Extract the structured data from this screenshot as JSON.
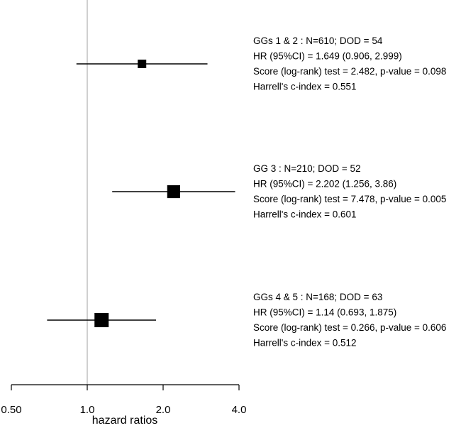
{
  "chart_data": {
    "type": "forest",
    "xlabel": "hazard ratios",
    "x_scale": "log",
    "xlim": [
      0.5,
      4.0
    ],
    "x_ticks": [
      {
        "value": 0.5,
        "label": "0.50"
      },
      {
        "value": 1.0,
        "label": "1.0"
      },
      {
        "value": 2.0,
        "label": "2.0"
      },
      {
        "value": 4.0,
        "label": "4.0"
      }
    ],
    "reference_line": 1.0,
    "grid": false,
    "rows": [
      {
        "hr": 1.649,
        "lower": 0.906,
        "upper": 2.999,
        "n": 610,
        "annotations": [
          "GGs 1 & 2  : N=610; DOD = 54",
          "HR (95%CI) =  1.649 (0.906, 2.999)",
          "Score (log-rank) test = 2.482, p-value = 0.098",
          "Harrell's c-index = 0.551"
        ]
      },
      {
        "hr": 2.202,
        "lower": 1.256,
        "upper": 3.86,
        "n": 210,
        "annotations": [
          "GG 3 : N=210; DOD = 52",
          "HR (95%CI) =  2.202 (1.256, 3.86)",
          "Score (log-rank) test = 7.478, p-value = 0.005",
          "Harrell's c-index = 0.601"
        ]
      },
      {
        "hr": 1.14,
        "lower": 0.693,
        "upper": 1.875,
        "n": 168,
        "annotations": [
          "GGs 4 & 5 : N=168; DOD = 63",
          "HR (95%CI) =  1.14 (0.693, 1.875)",
          "Score (log-rank) test = 0.266, p-value = 0.606",
          "Harrell's c-index = 0.512"
        ]
      }
    ],
    "colors": {
      "marks": "#000000",
      "reference_line": "#b0b0b0"
    }
  }
}
